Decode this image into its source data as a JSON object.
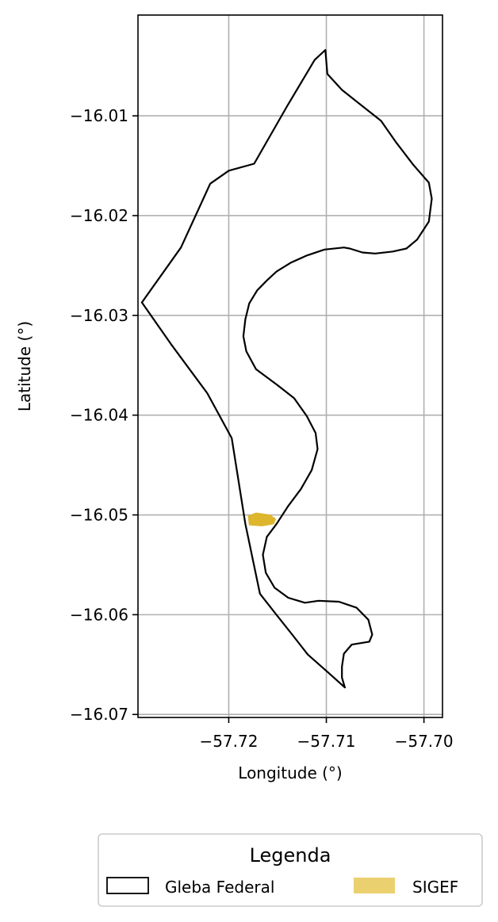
{
  "chart_data": {
    "type": "map",
    "xlabel": "Longitude (°)",
    "ylabel": "Latitude (°)",
    "xlim": [
      -57.7293,
      -57.6981
    ],
    "ylim": [
      -16.0703,
      -15.9999
    ],
    "grid": true,
    "x_ticks": [
      {
        "value": -57.72,
        "label": "−57.72"
      },
      {
        "value": -57.71,
        "label": "−57.71"
      },
      {
        "value": -57.7,
        "label": "−57.70"
      }
    ],
    "y_ticks": [
      {
        "value": -16.01,
        "label": "−16.01"
      },
      {
        "value": -16.02,
        "label": "−16.02"
      },
      {
        "value": -16.03,
        "label": "−16.03"
      },
      {
        "value": -16.04,
        "label": "−16.04"
      },
      {
        "value": -16.05,
        "label": "−16.05"
      },
      {
        "value": -16.06,
        "label": "−16.06"
      },
      {
        "value": -16.07,
        "label": "−16.07"
      }
    ],
    "legend": {
      "title": "Legenda",
      "placement": "bottom",
      "entries": [
        {
          "label": "Gleba Federal",
          "style": "outline",
          "color": "#000000"
        },
        {
          "label": "SIGEF",
          "style": "fill",
          "color": "#ebd070"
        }
      ]
    },
    "layers": [
      {
        "name": "Gleba Federal",
        "type": "polygon-outline",
        "stroke": "#000000",
        "coordinates": [
          [
            -57.7101,
            -16.0034
          ],
          [
            -57.7099,
            -16.0058
          ],
          [
            -57.7084,
            -16.0074
          ],
          [
            -57.7066,
            -16.0088
          ],
          [
            -57.7044,
            -16.0105
          ],
          [
            -57.7029,
            -16.0126
          ],
          [
            -57.7011,
            -16.0149
          ],
          [
            -57.6995,
            -16.0167
          ],
          [
            -57.6992,
            -16.0183
          ],
          [
            -57.6995,
            -16.0206
          ],
          [
            -57.7007,
            -16.0224
          ],
          [
            -57.7018,
            -16.0233
          ],
          [
            -57.7032,
            -16.0236
          ],
          [
            -57.705,
            -16.0238
          ],
          [
            -57.7063,
            -16.0237
          ],
          [
            -57.7076,
            -16.0233
          ],
          [
            -57.7082,
            -16.0232
          ],
          [
            -57.7102,
            -16.0234
          ],
          [
            -57.712,
            -16.024
          ],
          [
            -57.7136,
            -16.0247
          ],
          [
            -57.7151,
            -16.0256
          ],
          [
            -57.7161,
            -16.0265
          ],
          [
            -57.7171,
            -16.0275
          ],
          [
            -57.7179,
            -16.0288
          ],
          [
            -57.7183,
            -16.0304
          ],
          [
            -57.7185,
            -16.0321
          ],
          [
            -57.7182,
            -16.0336
          ],
          [
            -57.7172,
            -16.0354
          ],
          [
            -57.715,
            -16.037
          ],
          [
            -57.7133,
            -16.0383
          ],
          [
            -57.712,
            -16.0401
          ],
          [
            -57.7111,
            -16.0418
          ],
          [
            -57.7109,
            -16.0434
          ],
          [
            -57.7115,
            -16.0455
          ],
          [
            -57.7126,
            -16.0474
          ],
          [
            -57.7139,
            -16.0491
          ],
          [
            -57.7151,
            -16.0509
          ],
          [
            -57.7161,
            -16.0522
          ],
          [
            -57.7165,
            -16.054
          ],
          [
            -57.7162,
            -16.0558
          ],
          [
            -57.7153,
            -16.0573
          ],
          [
            -57.7139,
            -16.0583
          ],
          [
            -57.7122,
            -16.0588
          ],
          [
            -57.7108,
            -16.0586
          ],
          [
            -57.7087,
            -16.0587
          ],
          [
            -57.7069,
            -16.0593
          ],
          [
            -57.7057,
            -16.0605
          ],
          [
            -57.7053,
            -16.062
          ],
          [
            -57.7056,
            -16.0627
          ],
          [
            -57.7074,
            -16.063
          ],
          [
            -57.7082,
            -16.0639
          ],
          [
            -57.7084,
            -16.0652
          ],
          [
            -57.7084,
            -16.0663
          ],
          [
            -57.7081,
            -16.0673
          ],
          [
            -57.7098,
            -16.0658
          ],
          [
            -57.7119,
            -16.064
          ],
          [
            -57.7135,
            -16.062
          ],
          [
            -57.7152,
            -16.0599
          ],
          [
            -57.7168,
            -16.0579
          ],
          [
            -57.7183,
            -16.0509
          ],
          [
            -57.7197,
            -16.0423
          ],
          [
            -57.7222,
            -16.0378
          ],
          [
            -57.7259,
            -16.0329
          ],
          [
            -57.7289,
            -16.0287
          ],
          [
            -57.7249,
            -16.0232
          ],
          [
            -57.7219,
            -16.0168
          ],
          [
            -57.72,
            -16.0155
          ],
          [
            -57.7174,
            -16.0148
          ],
          [
            -57.714,
            -16.009
          ],
          [
            -57.7112,
            -16.0044
          ],
          [
            -57.7101,
            -16.0034
          ]
        ]
      },
      {
        "name": "SIGEF",
        "type": "polygon-fill",
        "fill": "#ddb62e",
        "coordinates": [
          [
            -57.718,
            -16.0501
          ],
          [
            -57.7172,
            -16.0498
          ],
          [
            -57.7158,
            -16.05
          ],
          [
            -57.7152,
            -16.0504
          ],
          [
            -57.7154,
            -16.0509
          ],
          [
            -57.7166,
            -16.0511
          ],
          [
            -57.7179,
            -16.051
          ],
          [
            -57.718,
            -16.0501
          ]
        ]
      }
    ]
  }
}
